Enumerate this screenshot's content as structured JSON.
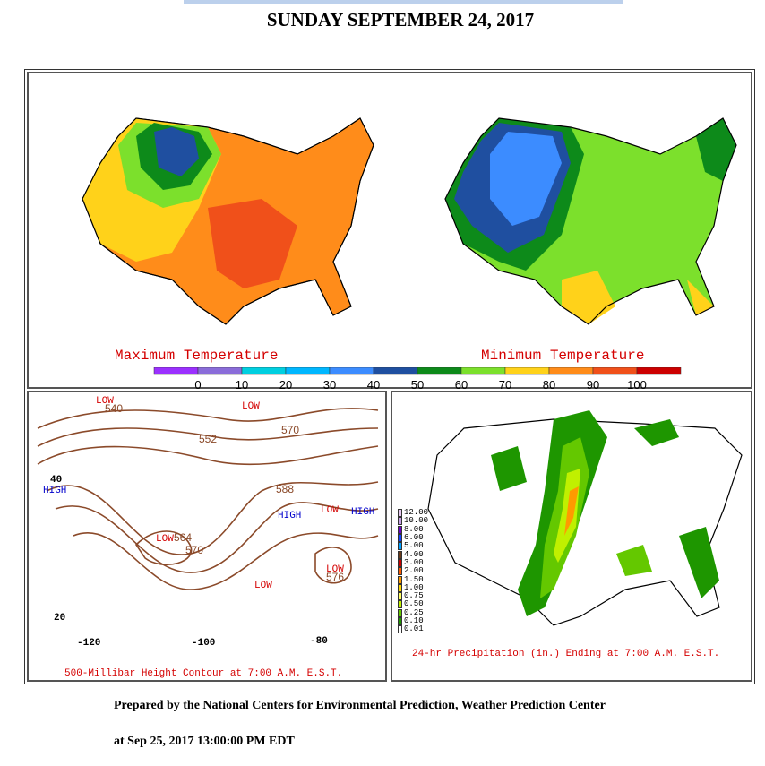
{
  "page": {
    "title": "SUNDAY SEPTEMBER 24, 2017",
    "credit": "Prepared by the National Centers for Environmental Prediction, Weather Prediction Center",
    "timestamp": "at Sep 25, 2017 13:00:00 PM EDT"
  },
  "temperature_panel": {
    "max_label": "Maximum Temperature",
    "min_label": "Minimum Temperature",
    "scale_values": [
      "0",
      "10",
      "20",
      "30",
      "40",
      "50",
      "60",
      "70",
      "80",
      "90",
      "100"
    ],
    "scale_colors": [
      "#9b30ff",
      "#8a6cd9",
      "#00cfe0",
      "#00b7ff",
      "#3c8cff",
      "#1f4fa0",
      "#0d8a1a",
      "#7ce02c",
      "#ffd21a",
      "#ff8c1a",
      "#f0501a",
      "#cc0000"
    ]
  },
  "height_panel": {
    "caption": "500-Millibar Height Contour at 7:00 A.M. E.S.T.",
    "highs": [
      "HIGH",
      "HIGH",
      "HIGH"
    ],
    "lows": [
      "LOW",
      "LOW",
      "LOW",
      "LOW",
      "LOW",
      "LOW"
    ],
    "contour_labels": [
      "552",
      "588",
      "564",
      "576",
      "570",
      "570",
      "540"
    ],
    "lat_labels": [
      "40",
      "20"
    ],
    "lon_labels": [
      "-120",
      "-100",
      "-80"
    ]
  },
  "precip_panel": {
    "caption": "24-hr Precipitation (in.) Ending at 7:00 A.M. E.S.T.",
    "legend": [
      {
        "value": "12.00",
        "color": "#e6c8f0"
      },
      {
        "value": "10.00",
        "color": "#c8a0e6"
      },
      {
        "value": "8.00",
        "color": "#6a00c8"
      },
      {
        "value": "6.00",
        "color": "#1040ff"
      },
      {
        "value": "5.00",
        "color": "#00a0ff"
      },
      {
        "value": "4.00",
        "color": "#6a3a1a"
      },
      {
        "value": "3.00",
        "color": "#c80000"
      },
      {
        "value": "2.00",
        "color": "#ff5a00"
      },
      {
        "value": "1.50",
        "color": "#ff9a00"
      },
      {
        "value": "1.00",
        "color": "#ffd800"
      },
      {
        "value": "0.75",
        "color": "#ffff60"
      },
      {
        "value": "0.50",
        "color": "#c0f000"
      },
      {
        "value": "0.25",
        "color": "#64c800"
      },
      {
        "value": "0.10",
        "color": "#1e9600"
      },
      {
        "value": "0.01",
        "color": "#ffffff"
      }
    ]
  }
}
